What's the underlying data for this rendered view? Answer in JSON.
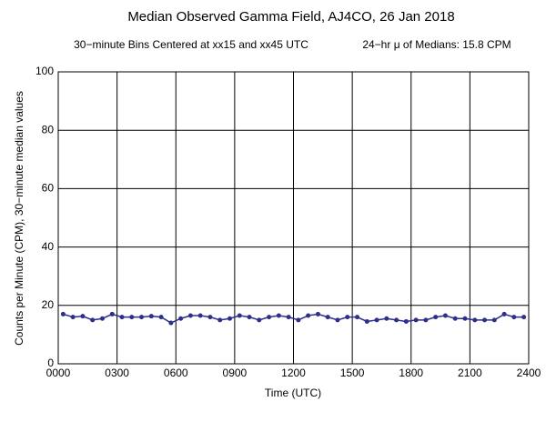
{
  "chart_data": {
    "type": "line",
    "title": "Median Observed Gamma Field, AJ4CO, 26 Jan 2018",
    "subtitle": "30−minute Bins Centered at xx15 and xx45 UTC",
    "annotation": "24−hr μ of Medians: 15.8 CPM",
    "x_label": "Time (UTC)",
    "y_label": "Counts per Minute (CPM), 30−minute median values",
    "x": [
      0.25,
      0.75,
      1.25,
      1.75,
      2.25,
      2.75,
      3.25,
      3.75,
      4.25,
      4.75,
      5.25,
      5.75,
      6.25,
      6.75,
      7.25,
      7.75,
      8.25,
      8.75,
      9.25,
      9.75,
      10.25,
      10.75,
      11.25,
      11.75,
      12.25,
      12.75,
      13.25,
      13.75,
      14.25,
      14.75,
      15.25,
      15.75,
      16.25,
      16.75,
      17.25,
      17.75,
      18.25,
      18.75,
      19.25,
      19.75,
      20.25,
      20.75,
      21.25,
      21.75,
      22.25,
      22.75,
      23.25,
      23.75
    ],
    "series": [
      {
        "color": "#2e2e8c",
        "values": [
          17,
          16,
          16.3,
          15,
          15.5,
          17,
          16,
          16,
          16,
          16.3,
          16,
          14,
          15.5,
          16.5,
          16.5,
          16,
          15,
          15.5,
          16.5,
          16,
          15,
          16,
          16.5,
          16,
          15,
          16.5,
          17,
          16,
          15,
          16,
          16,
          14.5,
          15,
          15.5,
          15,
          14.5,
          15,
          15,
          16,
          16.5,
          15.5,
          15.5,
          15,
          15,
          15,
          17,
          16,
          16
        ]
      }
    ],
    "xlim": [
      0,
      24
    ],
    "ylim": [
      0,
      100
    ],
    "xticks": [
      {
        "value": 0,
        "label": "0000"
      },
      {
        "value": 3,
        "label": "0300"
      },
      {
        "value": 6,
        "label": "0600"
      },
      {
        "value": 9,
        "label": "0900"
      },
      {
        "value": 12,
        "label": "1200"
      },
      {
        "value": 15,
        "label": "1500"
      },
      {
        "value": 18,
        "label": "1800"
      },
      {
        "value": 21,
        "label": "2100"
      },
      {
        "value": 24,
        "label": "2400"
      }
    ],
    "yticks": [
      0,
      20,
      40,
      60,
      80,
      100
    ],
    "grid": true
  }
}
